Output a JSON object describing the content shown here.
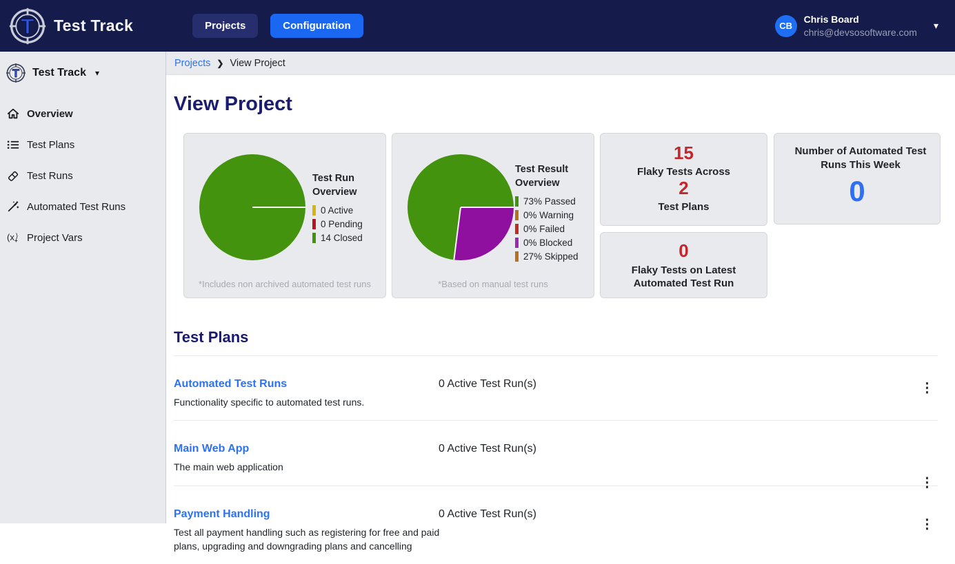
{
  "icons": {
    "kebab": "⋮",
    "caret_down": "▾",
    "breadcrumb_chevron": "❯"
  },
  "navbar": {
    "brand": "Test Track",
    "buttons": [
      {
        "label": "Projects"
      },
      {
        "label": "Configuration"
      }
    ],
    "user": {
      "initials": "CB",
      "name": "Chris Board",
      "email": "chris@devsosoftware.com"
    }
  },
  "sidebar": {
    "brand": "Test Track",
    "items": [
      {
        "label": "Overview",
        "icon": "home-icon",
        "active": true
      },
      {
        "label": "Test Plans",
        "icon": "list-icon",
        "active": false
      },
      {
        "label": "Test Runs",
        "icon": "eraser-icon",
        "active": false
      },
      {
        "label": "Automated Test Runs",
        "icon": "wand-icon",
        "active": false
      },
      {
        "label": "Project Vars",
        "icon": "vars-icon",
        "active": false
      }
    ]
  },
  "breadcrumb": {
    "parent": "Projects",
    "current": "View Project"
  },
  "page_title": "View Project",
  "chart_data": [
    {
      "type": "pie",
      "title": "Test Run Overview",
      "slices": [
        {
          "label": "Closed",
          "value": 100,
          "start_pct": 0,
          "color": "#44930e"
        }
      ],
      "legend": [
        {
          "label": "0 Active",
          "color": "#d7b40f"
        },
        {
          "label": "0 Pending",
          "color": "#b5161d"
        },
        {
          "label": "14 Closed",
          "color": "#44930e"
        }
      ],
      "values": {
        "active": 0,
        "pending": 0,
        "closed": 14
      },
      "footnote": "*Includes non archived automated test runs"
    },
    {
      "type": "pie",
      "title": "Test Result Overview",
      "slices": [
        {
          "label": "Skipped",
          "value": 27,
          "start_pct": 0,
          "color": "#8f109f"
        },
        {
          "label": "Passed",
          "value": 73,
          "start_pct": 27,
          "color": "#44930e"
        }
      ],
      "legend": [
        {
          "label": "73% Passed",
          "color": "#44930e"
        },
        {
          "label": "0% Warning",
          "color": "#b9701a"
        },
        {
          "label": "0% Failed",
          "color": "#c02b1d"
        },
        {
          "label": "0% Blocked",
          "color": "#9c27b0"
        },
        {
          "label": "27% Skipped",
          "color": "#b9701a"
        }
      ],
      "values": {
        "passed_pct": 73,
        "warning_pct": 0,
        "failed_pct": 0,
        "blocked_pct": 0,
        "skipped_pct": 27
      },
      "footnote": "*Based on manual test runs"
    }
  ],
  "stat_cards": {
    "flaky": {
      "value_top": "15",
      "label_top": "Flaky Tests Across",
      "value_bottom": "2",
      "label_bottom": "Test Plans",
      "value_color": "#c1272d"
    },
    "automated_week": {
      "label": "Number of Automated Test Runs This Week",
      "value": "0",
      "value_color": "#2e6ff3"
    },
    "flaky_latest": {
      "value": "0",
      "label": "Flaky Tests on Latest Automated Test Run",
      "value_color": "#c1272d"
    }
  },
  "test_plans": {
    "heading": "Test Plans",
    "rows": [
      {
        "title": "Automated Test Runs",
        "description": "Functionality specific to automated test runs.",
        "active_runs": "0 Active Test Run(s)"
      },
      {
        "title": "Main Web App",
        "description": "The main web application",
        "active_runs": "0 Active Test Run(s)"
      },
      {
        "title": "Payment Handling",
        "description": "Test all payment handling such as registering for free and paid plans, upgrading and downgrading plans and cancelling",
        "active_runs": "0 Active Test Run(s)"
      }
    ]
  }
}
